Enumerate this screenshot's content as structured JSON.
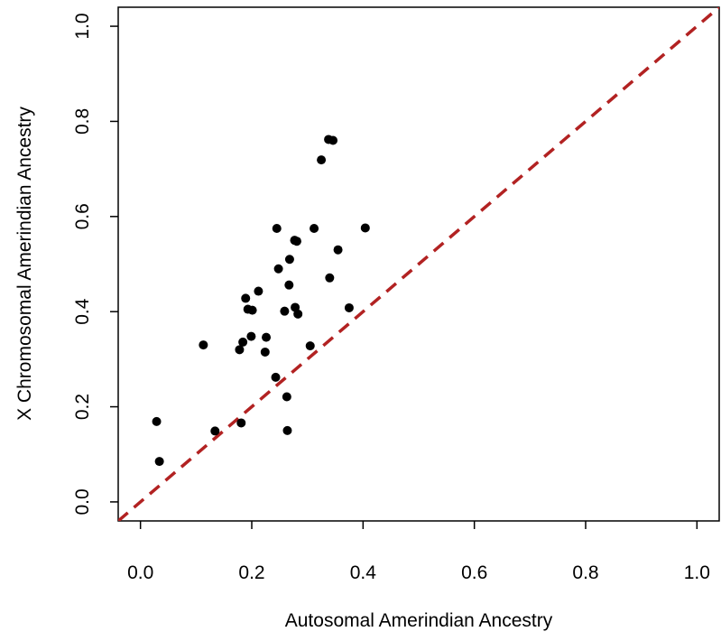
{
  "chart_data": {
    "type": "scatter",
    "xlabel": "Autosomal Amerindian Ancestry",
    "ylabel": "X Chromosomal Amerindian Ancestry",
    "xlim": [
      -0.04,
      1.04
    ],
    "ylim": [
      -0.04,
      1.04
    ],
    "x_ticks": [
      "0.0",
      "0.2",
      "0.4",
      "0.6",
      "0.8",
      "1.0"
    ],
    "y_ticks": [
      "0.0",
      "0.2",
      "0.4",
      "0.6",
      "0.8",
      "1.0"
    ],
    "grid": false,
    "reference_line": {
      "slope": 1,
      "intercept": 0,
      "style": "dashed",
      "color": "#b22222"
    },
    "point_color": "#000000",
    "points": [
      {
        "x": 0.029,
        "y": 0.169
      },
      {
        "x": 0.034,
        "y": 0.085
      },
      {
        "x": 0.113,
        "y": 0.33
      },
      {
        "x": 0.134,
        "y": 0.149
      },
      {
        "x": 0.178,
        "y": 0.32
      },
      {
        "x": 0.181,
        "y": 0.166
      },
      {
        "x": 0.184,
        "y": 0.336
      },
      {
        "x": 0.189,
        "y": 0.428
      },
      {
        "x": 0.193,
        "y": 0.405
      },
      {
        "x": 0.199,
        "y": 0.348
      },
      {
        "x": 0.201,
        "y": 0.403
      },
      {
        "x": 0.212,
        "y": 0.443
      },
      {
        "x": 0.224,
        "y": 0.315
      },
      {
        "x": 0.226,
        "y": 0.346
      },
      {
        "x": 0.243,
        "y": 0.262
      },
      {
        "x": 0.245,
        "y": 0.575
      },
      {
        "x": 0.248,
        "y": 0.49
      },
      {
        "x": 0.259,
        "y": 0.401
      },
      {
        "x": 0.263,
        "y": 0.221
      },
      {
        "x": 0.264,
        "y": 0.15
      },
      {
        "x": 0.267,
        "y": 0.456
      },
      {
        "x": 0.268,
        "y": 0.51
      },
      {
        "x": 0.277,
        "y": 0.55
      },
      {
        "x": 0.278,
        "y": 0.409
      },
      {
        "x": 0.281,
        "y": 0.548
      },
      {
        "x": 0.283,
        "y": 0.395
      },
      {
        "x": 0.305,
        "y": 0.328
      },
      {
        "x": 0.312,
        "y": 0.575
      },
      {
        "x": 0.325,
        "y": 0.719
      },
      {
        "x": 0.338,
        "y": 0.762
      },
      {
        "x": 0.34,
        "y": 0.471
      },
      {
        "x": 0.346,
        "y": 0.76
      },
      {
        "x": 0.355,
        "y": 0.53
      },
      {
        "x": 0.375,
        "y": 0.408
      },
      {
        "x": 0.404,
        "y": 0.576
      }
    ]
  }
}
